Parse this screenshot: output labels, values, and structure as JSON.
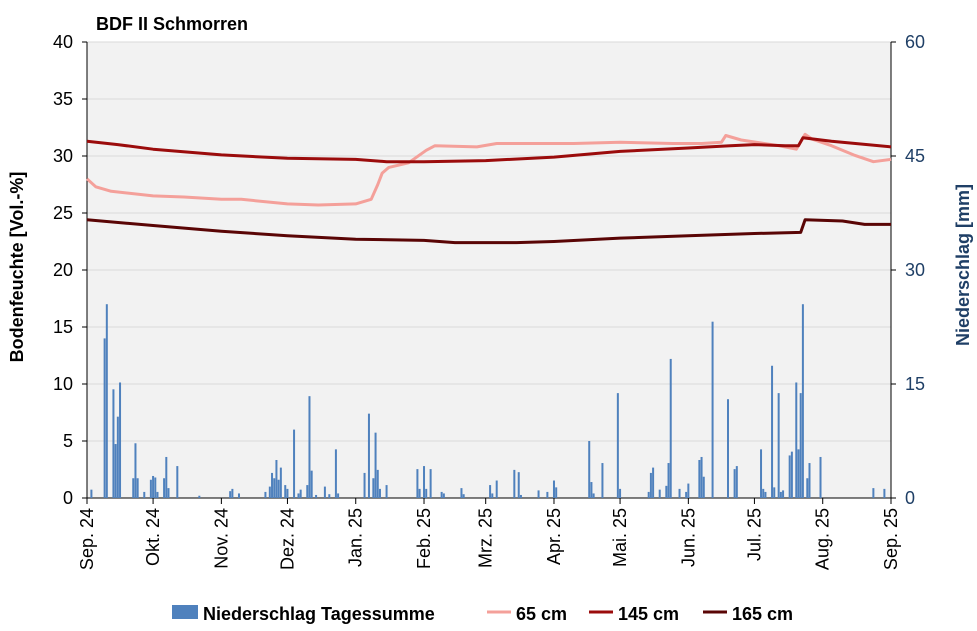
{
  "chart_data": {
    "type": "bar+line",
    "title": "BDF II Schmorren",
    "ylabel_left": "Bodenfeuchte [Vol.-%]",
    "ylabel_right": "Niederschlag [mm]",
    "ylim_left": [
      0,
      40
    ],
    "ylim_right": [
      0,
      60
    ],
    "yticks_left": [
      "0",
      "5",
      "10",
      "15",
      "20",
      "25",
      "30",
      "35",
      "40"
    ],
    "yticks_right": [
      "0",
      "15",
      "30",
      "45",
      "60"
    ],
    "x_start": "2024-09-01",
    "x_end": "2025-09-01",
    "xticks": [
      {
        "date": "2024-09-01",
        "label": "Sep. 24"
      },
      {
        "date": "2024-10-01",
        "label": "Okt. 24"
      },
      {
        "date": "2024-11-01",
        "label": "Nov. 24"
      },
      {
        "date": "2024-12-01",
        "label": "Dez. 24"
      },
      {
        "date": "2025-01-01",
        "label": "Jan. 25"
      },
      {
        "date": "2025-02-01",
        "label": "Feb. 25"
      },
      {
        "date": "2025-03-01",
        "label": "Mrz. 25"
      },
      {
        "date": "2025-04-01",
        "label": "Apr. 25"
      },
      {
        "date": "2025-05-01",
        "label": "Mai. 25"
      },
      {
        "date": "2025-06-01",
        "label": "Jun. 25"
      },
      {
        "date": "2025-07-01",
        "label": "Jul. 25"
      },
      {
        "date": "2025-08-01",
        "label": "Aug. 25"
      },
      {
        "date": "2025-09-01",
        "label": "Sep. 25"
      }
    ],
    "grid": true,
    "legend_position": "bottom",
    "colors": {
      "bars": "#4f81bd",
      "s65": "#f4a09a",
      "s145": "#9b0c0c",
      "s165": "#5a0505",
      "plot_bg": "#f2f2f2",
      "gridline": "#d9d9d9",
      "right_axis_text": "#1f3f66"
    },
    "bar_series": {
      "name": "Niederschlag Tagessumme",
      "axis": "right",
      "points": [
        {
          "x": "2024-09-03",
          "y": 1.1
        },
        {
          "x": "2024-09-09",
          "y": 21
        },
        {
          "x": "2024-09-10",
          "y": 25.5
        },
        {
          "x": "2024-09-13",
          "y": 14.3
        },
        {
          "x": "2024-09-14",
          "y": 7.1
        },
        {
          "x": "2024-09-15",
          "y": 10.7
        },
        {
          "x": "2024-09-16",
          "y": 15.2
        },
        {
          "x": "2024-09-22",
          "y": 2.6
        },
        {
          "x": "2024-09-23",
          "y": 7.2
        },
        {
          "x": "2024-09-24",
          "y": 2.6
        },
        {
          "x": "2024-09-27",
          "y": 0.8
        },
        {
          "x": "2024-09-30",
          "y": 2.4
        },
        {
          "x": "2024-10-01",
          "y": 2.9
        },
        {
          "x": "2024-10-02",
          "y": 2.7
        },
        {
          "x": "2024-10-03",
          "y": 0.8
        },
        {
          "x": "2024-10-06",
          "y": 2.6
        },
        {
          "x": "2024-10-07",
          "y": 5.4
        },
        {
          "x": "2024-10-08",
          "y": 1.3
        },
        {
          "x": "2024-10-12",
          "y": 4.2
        },
        {
          "x": "2024-10-22",
          "y": 0.3
        },
        {
          "x": "2024-11-05",
          "y": 0.9
        },
        {
          "x": "2024-11-06",
          "y": 1.2
        },
        {
          "x": "2024-11-09",
          "y": 0.6
        },
        {
          "x": "2024-11-21",
          "y": 0.8
        },
        {
          "x": "2024-11-23",
          "y": 1.5
        },
        {
          "x": "2024-11-24",
          "y": 3.3
        },
        {
          "x": "2024-11-25",
          "y": 2.6
        },
        {
          "x": "2024-11-26",
          "y": 5
        },
        {
          "x": "2024-11-27",
          "y": 2.4
        },
        {
          "x": "2024-11-28",
          "y": 4
        },
        {
          "x": "2024-11-30",
          "y": 1.7
        },
        {
          "x": "2024-12-01",
          "y": 1.2
        },
        {
          "x": "2024-12-04",
          "y": 9
        },
        {
          "x": "2024-12-06",
          "y": 0.6
        },
        {
          "x": "2024-12-07",
          "y": 1.1
        },
        {
          "x": "2024-12-10",
          "y": 1.7
        },
        {
          "x": "2024-12-11",
          "y": 13.4
        },
        {
          "x": "2024-12-12",
          "y": 3.6
        },
        {
          "x": "2024-12-14",
          "y": 0.4
        },
        {
          "x": "2024-12-18",
          "y": 1.5
        },
        {
          "x": "2024-12-20",
          "y": 0.5
        },
        {
          "x": "2024-12-23",
          "y": 6.4
        },
        {
          "x": "2024-12-24",
          "y": 0.6
        },
        {
          "x": "2025-01-05",
          "y": 3.3
        },
        {
          "x": "2025-01-07",
          "y": 11.1
        },
        {
          "x": "2025-01-09",
          "y": 2.6
        },
        {
          "x": "2025-01-10",
          "y": 8.6
        },
        {
          "x": "2025-01-11",
          "y": 3.7
        },
        {
          "x": "2025-01-12",
          "y": 1.2
        },
        {
          "x": "2025-01-15",
          "y": 1.7
        },
        {
          "x": "2025-01-29",
          "y": 3.8
        },
        {
          "x": "2025-01-30",
          "y": 1.2
        },
        {
          "x": "2025-02-01",
          "y": 4.2
        },
        {
          "x": "2025-02-02",
          "y": 1.2
        },
        {
          "x": "2025-02-04",
          "y": 3.8
        },
        {
          "x": "2025-02-09",
          "y": 0.8
        },
        {
          "x": "2025-02-10",
          "y": 0.6
        },
        {
          "x": "2025-02-18",
          "y": 1.3
        },
        {
          "x": "2025-02-19",
          "y": 0.5
        },
        {
          "x": "2025-03-03",
          "y": 1.7
        },
        {
          "x": "2025-03-04",
          "y": 0.6
        },
        {
          "x": "2025-03-06",
          "y": 2.3
        },
        {
          "x": "2025-03-14",
          "y": 3.7
        },
        {
          "x": "2025-03-16",
          "y": 3.4
        },
        {
          "x": "2025-03-17",
          "y": 0.4
        },
        {
          "x": "2025-03-25",
          "y": 1
        },
        {
          "x": "2025-03-29",
          "y": 0.8
        },
        {
          "x": "2025-04-01",
          "y": 2.3
        },
        {
          "x": "2025-04-02",
          "y": 1.4
        },
        {
          "x": "2025-04-17",
          "y": 7.5
        },
        {
          "x": "2025-04-18",
          "y": 2.1
        },
        {
          "x": "2025-04-19",
          "y": 0.6
        },
        {
          "x": "2025-04-23",
          "y": 4.6
        },
        {
          "x": "2025-04-30",
          "y": 13.8
        },
        {
          "x": "2025-05-01",
          "y": 1.2
        },
        {
          "x": "2025-05-14",
          "y": 0.8
        },
        {
          "x": "2025-05-15",
          "y": 3.3
        },
        {
          "x": "2025-05-16",
          "y": 4
        },
        {
          "x": "2025-05-19",
          "y": 1.1
        },
        {
          "x": "2025-05-22",
          "y": 1.6
        },
        {
          "x": "2025-05-23",
          "y": 4.6
        },
        {
          "x": "2025-05-24",
          "y": 18.3
        },
        {
          "x": "2025-05-28",
          "y": 1.2
        },
        {
          "x": "2025-05-31",
          "y": 0.8
        },
        {
          "x": "2025-06-01",
          "y": 1.9
        },
        {
          "x": "2025-06-06",
          "y": 5
        },
        {
          "x": "2025-06-07",
          "y": 5.4
        },
        {
          "x": "2025-06-08",
          "y": 2.8
        },
        {
          "x": "2025-06-12",
          "y": 23.2
        },
        {
          "x": "2025-06-19",
          "y": 13
        },
        {
          "x": "2025-06-22",
          "y": 3.8
        },
        {
          "x": "2025-06-23",
          "y": 4.2
        },
        {
          "x": "2025-07-04",
          "y": 6.4
        },
        {
          "x": "2025-07-05",
          "y": 1.2
        },
        {
          "x": "2025-07-06",
          "y": 0.8
        },
        {
          "x": "2025-07-09",
          "y": 17.4
        },
        {
          "x": "2025-07-10",
          "y": 1.4
        },
        {
          "x": "2025-07-12",
          "y": 13.8
        },
        {
          "x": "2025-07-13",
          "y": 0.8
        },
        {
          "x": "2025-07-14",
          "y": 1
        },
        {
          "x": "2025-07-17",
          "y": 5.6
        },
        {
          "x": "2025-07-18",
          "y": 6.1
        },
        {
          "x": "2025-07-20",
          "y": 15.2
        },
        {
          "x": "2025-07-21",
          "y": 6.4
        },
        {
          "x": "2025-07-22",
          "y": 13.8
        },
        {
          "x": "2025-07-23",
          "y": 25.5
        },
        {
          "x": "2025-07-25",
          "y": 2.6
        },
        {
          "x": "2025-07-26",
          "y": 4.6
        },
        {
          "x": "2025-07-31",
          "y": 5.4
        },
        {
          "x": "2025-08-24",
          "y": 1.3
        },
        {
          "x": "2025-08-29",
          "y": 1.2
        }
      ]
    },
    "line_series": [
      {
        "key": "s65",
        "name": "65 cm",
        "axis": "left",
        "points": [
          {
            "x": "2024-09-01",
            "y": 28
          },
          {
            "x": "2024-09-05",
            "y": 27.3
          },
          {
            "x": "2024-09-12",
            "y": 26.9
          },
          {
            "x": "2024-10-01",
            "y": 26.5
          },
          {
            "x": "2024-10-15",
            "y": 26.4
          },
          {
            "x": "2024-11-01",
            "y": 26.2
          },
          {
            "x": "2024-11-10",
            "y": 26.2
          },
          {
            "x": "2024-12-01",
            "y": 25.8
          },
          {
            "x": "2024-12-15",
            "y": 25.7
          },
          {
            "x": "2025-01-01",
            "y": 25.8
          },
          {
            "x": "2025-01-08",
            "y": 26.2
          },
          {
            "x": "2025-01-11",
            "y": 27.5
          },
          {
            "x": "2025-01-13",
            "y": 28.5
          },
          {
            "x": "2025-01-16",
            "y": 29
          },
          {
            "x": "2025-01-25",
            "y": 29.4
          },
          {
            "x": "2025-02-02",
            "y": 30.5
          },
          {
            "x": "2025-02-06",
            "y": 30.9
          },
          {
            "x": "2025-02-25",
            "y": 30.8
          },
          {
            "x": "2025-03-06",
            "y": 31.1
          },
          {
            "x": "2025-04-01",
            "y": 31.1
          },
          {
            "x": "2025-04-10",
            "y": 31.1
          },
          {
            "x": "2025-05-01",
            "y": 31.2
          },
          {
            "x": "2025-05-25",
            "y": 31.1
          },
          {
            "x": "2025-06-07",
            "y": 31.1
          },
          {
            "x": "2025-06-16",
            "y": 31.2
          },
          {
            "x": "2025-06-18",
            "y": 31.8
          },
          {
            "x": "2025-06-25",
            "y": 31.4
          },
          {
            "x": "2025-07-12",
            "y": 30.9
          },
          {
            "x": "2025-07-20",
            "y": 30.6
          },
          {
            "x": "2025-07-24",
            "y": 31.9
          },
          {
            "x": "2025-07-27",
            "y": 31.5
          },
          {
            "x": "2025-08-05",
            "y": 30.9
          },
          {
            "x": "2025-08-15",
            "y": 30.1
          },
          {
            "x": "2025-08-24",
            "y": 29.5
          },
          {
            "x": "2025-09-01",
            "y": 29.7
          }
        ]
      },
      {
        "key": "s145",
        "name": "145 cm",
        "axis": "left",
        "points": [
          {
            "x": "2024-09-01",
            "y": 31.3
          },
          {
            "x": "2024-09-15",
            "y": 31
          },
          {
            "x": "2024-10-01",
            "y": 30.6
          },
          {
            "x": "2024-11-01",
            "y": 30.1
          },
          {
            "x": "2024-12-01",
            "y": 29.8
          },
          {
            "x": "2025-01-01",
            "y": 29.7
          },
          {
            "x": "2025-01-15",
            "y": 29.5
          },
          {
            "x": "2025-02-01",
            "y": 29.5
          },
          {
            "x": "2025-03-01",
            "y": 29.6
          },
          {
            "x": "2025-04-01",
            "y": 29.9
          },
          {
            "x": "2025-05-01",
            "y": 30.4
          },
          {
            "x": "2025-06-01",
            "y": 30.7
          },
          {
            "x": "2025-06-20",
            "y": 30.9
          },
          {
            "x": "2025-07-01",
            "y": 31
          },
          {
            "x": "2025-07-15",
            "y": 30.9
          },
          {
            "x": "2025-07-21",
            "y": 30.9
          },
          {
            "x": "2025-07-23",
            "y": 31.6
          },
          {
            "x": "2025-08-05",
            "y": 31.3
          },
          {
            "x": "2025-09-01",
            "y": 30.8
          }
        ]
      },
      {
        "key": "s165",
        "name": "165 cm",
        "axis": "left",
        "points": [
          {
            "x": "2024-09-01",
            "y": 24.4
          },
          {
            "x": "2024-10-01",
            "y": 23.9
          },
          {
            "x": "2024-11-01",
            "y": 23.4
          },
          {
            "x": "2024-12-01",
            "y": 23
          },
          {
            "x": "2025-01-01",
            "y": 22.7
          },
          {
            "x": "2025-02-01",
            "y": 22.6
          },
          {
            "x": "2025-02-15",
            "y": 22.4
          },
          {
            "x": "2025-03-15",
            "y": 22.4
          },
          {
            "x": "2025-04-01",
            "y": 22.5
          },
          {
            "x": "2025-05-01",
            "y": 22.8
          },
          {
            "x": "2025-06-01",
            "y": 23
          },
          {
            "x": "2025-07-01",
            "y": 23.2
          },
          {
            "x": "2025-07-22",
            "y": 23.3
          },
          {
            "x": "2025-07-24",
            "y": 24.4
          },
          {
            "x": "2025-08-10",
            "y": 24.3
          },
          {
            "x": "2025-08-20",
            "y": 24
          },
          {
            "x": "2025-09-01",
            "y": 24
          }
        ]
      }
    ]
  }
}
